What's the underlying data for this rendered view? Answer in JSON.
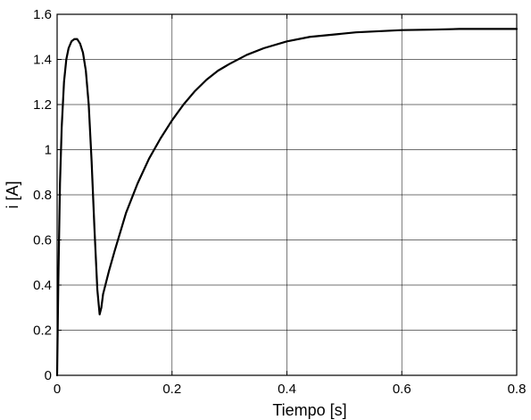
{
  "chart_data": {
    "type": "line",
    "title": "",
    "xlabel": "Tiempo [s]",
    "ylabel": "i [A]",
    "xlim": [
      0,
      0.8
    ],
    "ylim": [
      0,
      1.6
    ],
    "xticks": [
      0,
      0.2,
      0.4,
      0.6,
      0.8
    ],
    "xtick_labels": [
      "0",
      "0.2",
      "0.4",
      "0.6",
      "0.8"
    ],
    "yticks": [
      0,
      0.2,
      0.4,
      0.6,
      0.8,
      1.0,
      1.2,
      1.4,
      1.6
    ],
    "ytick_labels": [
      "0",
      "0.2",
      "0.4",
      "0.6",
      "0.8",
      "1",
      "1.2",
      "1.4",
      "1.6"
    ],
    "grid": true,
    "line_color": "#000000",
    "series": [
      {
        "x": [
          0,
          0.002,
          0.005,
          0.008,
          0.012,
          0.016,
          0.02,
          0.025,
          0.03,
          0.035,
          0.04,
          0.045,
          0.05,
          0.055,
          0.06,
          0.065,
          0.07,
          0.074,
          0.077,
          0.08,
          0.09,
          0.1,
          0.12,
          0.14,
          0.16,
          0.18,
          0.2,
          0.22,
          0.24,
          0.26,
          0.28,
          0.3,
          0.33,
          0.36,
          0.4,
          0.44,
          0.48,
          0.52,
          0.56,
          0.6,
          0.65,
          0.7,
          0.75,
          0.8
        ],
        "y": [
          0,
          0.4,
          0.85,
          1.1,
          1.3,
          1.4,
          1.45,
          1.48,
          1.49,
          1.49,
          1.47,
          1.43,
          1.35,
          1.2,
          0.95,
          0.65,
          0.38,
          0.27,
          0.3,
          0.36,
          0.46,
          0.55,
          0.72,
          0.85,
          0.96,
          1.05,
          1.13,
          1.2,
          1.26,
          1.31,
          1.35,
          1.38,
          1.42,
          1.45,
          1.48,
          1.5,
          1.51,
          1.52,
          1.525,
          1.53,
          1.532,
          1.535,
          1.535,
          1.535
        ]
      }
    ]
  }
}
